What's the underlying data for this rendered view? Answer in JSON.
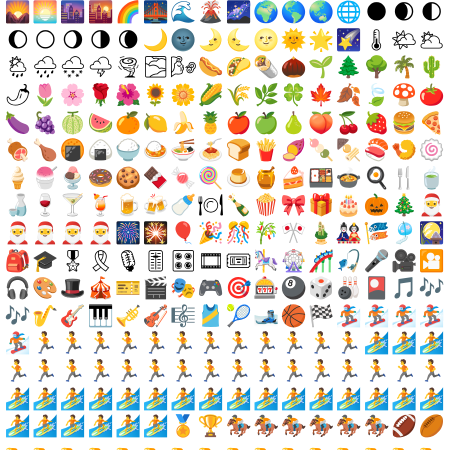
{
  "sheet": {
    "columns": 16,
    "rows": [
      [
        "🌄",
        "🌅",
        "🌆",
        "🌇",
        "🌈",
        "🌉",
        "🌊",
        "🌋",
        "🌌",
        "🌍",
        "🌎",
        "🌏",
        "🌐",
        "🌑",
        "🌒",
        "🌓"
      ],
      [
        "🌔",
        "🌕",
        "🌖",
        "🌗",
        "🌘",
        "🌙",
        "🌚",
        "🌛",
        "🌜",
        "🌝",
        "🌞",
        "🌟",
        "🌠",
        "🌡",
        "🌤",
        "🌥"
      ],
      [
        "🌦",
        "🌧",
        "🌨",
        "🌩",
        "🌪",
        "🌫",
        "🌬",
        "🌭",
        "🌮",
        "🌯",
        "🌰",
        "🌱",
        "🌲",
        "🌳",
        "🌴",
        "🌵"
      ],
      [
        "🌶",
        "🌷",
        "🌸",
        "🌹",
        "🌺",
        "🌻",
        "🌼",
        "🌽",
        "🌾",
        "🌿",
        "🍀",
        "🍁",
        "🍂",
        "🍃",
        "🍄",
        "🍅"
      ],
      [
        "🍆",
        "🍇",
        "🍈",
        "🍉",
        "🍊",
        "🍋",
        "🍌",
        "🍍",
        "🍎",
        "🍏",
        "🍐",
        "🍑",
        "🍒",
        "🍓",
        "🍔",
        "🍕"
      ],
      [
        "🍖",
        "🍗",
        "🍘",
        "🍙",
        "🍚",
        "🍛",
        "🍜",
        "🍝",
        "🍞",
        "🍟",
        "🍠",
        "🍡",
        "🍢",
        "🍣",
        "🍤",
        "🍥"
      ],
      [
        "🍦",
        "🍧",
        "🍨",
        "🍩",
        "🍪",
        "🍫",
        "🍬",
        "🍭",
        "🍮",
        "🍯",
        "🍰",
        "🍱",
        "🍲",
        "🍳",
        "🍴",
        "🍵"
      ],
      [
        "🍶",
        "🍷",
        "🍸",
        "🍹",
        "🍺",
        "🍻",
        "🍼",
        "🍽",
        "🍾",
        "🍿",
        "🎀",
        "🎁",
        "🎂",
        "🎃",
        "🎄",
        "🎅"
      ],
      [
        "🎅",
        "🎅",
        "🎅",
        "🎅",
        "🎆",
        "🎇",
        "🎈",
        "🎉",
        "🎊",
        "🎋",
        "🎌",
        "🎍",
        "🎎",
        "🎏",
        "🎐",
        "🎑"
      ],
      [
        "🎒",
        "🎓",
        "🎖",
        "🎗",
        "🎙",
        "🎚",
        "🎛",
        "🎞",
        "🎟",
        "🎠",
        "🎡",
        "🎢",
        "🎣",
        "🎤",
        "🎥",
        "🎦"
      ],
      [
        "🎧",
        "🎨",
        "🎩",
        "🎪",
        "🎫",
        "🎬",
        "🎭",
        "🎮",
        "🎯",
        "🎰",
        "🎱",
        "🎲",
        "🎳",
        "🎴",
        "🎵",
        "🎶"
      ],
      [
        "🎶",
        "🎷",
        "🎸",
        "🎹",
        "🎺",
        "🎻",
        "🎼",
        "🎽",
        "🎾",
        "🎿",
        "🏀",
        "🏁",
        "🏂",
        "🏂",
        "🏂",
        "🏂"
      ],
      [
        "🏂",
        "🏃",
        "🏃",
        "🏃",
        "🏃",
        "🏃",
        "🏃",
        "🏃",
        "🏃",
        "🏃",
        "🏃",
        "🏃",
        "🏃",
        "🏄",
        "🏄",
        "🏄"
      ],
      [
        "🏃",
        "🏃",
        "🏃",
        "🏃",
        "🏃",
        "🏃",
        "🏃",
        "🏃",
        "🏃",
        "🏃",
        "🏃",
        "🏃",
        "🏃",
        "🏃",
        "🏃",
        "🏃"
      ],
      [
        "🏄",
        "🏄",
        "🏄",
        "🏄",
        "🏄",
        "🏄",
        "🏄",
        "🏄",
        "🏄",
        "🏄",
        "🏄",
        "🏄",
        "🏄",
        "🏄",
        "🏄",
        "🏄"
      ],
      [
        "🏄",
        "🏄",
        "🏄",
        "🏄",
        "🏄",
        "🏄",
        "🏅",
        "🏆",
        "🏇",
        "🏇",
        "🏇",
        "🏇",
        "🏇",
        "🏇",
        "🏈",
        "🏉"
      ],
      [
        "🏊",
        "🏊",
        "🏊",
        "🏊",
        "🏊",
        "🏊",
        "🏊",
        "🏊",
        "🏊",
        "🏊",
        "🏊",
        "🏊",
        "🏊",
        "🏊",
        "🏊",
        "🏊"
      ]
    ]
  }
}
